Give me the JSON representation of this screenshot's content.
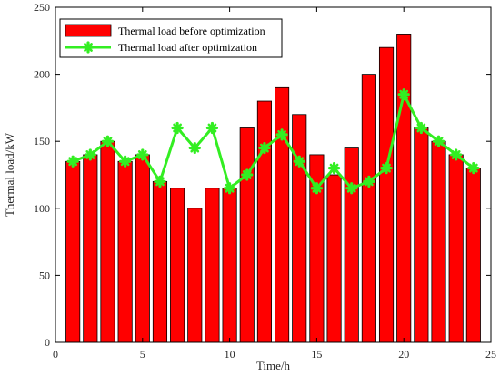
{
  "chart_data": {
    "type": "bar",
    "xlabel": "Time/h",
    "ylabel": "Thermal load/kW",
    "xlim": [
      0,
      25
    ],
    "ylim": [
      0,
      250
    ],
    "xticks": [
      0,
      5,
      10,
      15,
      20,
      25
    ],
    "yticks": [
      0,
      50,
      100,
      150,
      200,
      250
    ],
    "grid": false,
    "legend_position": "top-left",
    "categories": [
      1,
      2,
      3,
      4,
      5,
      6,
      7,
      8,
      9,
      10,
      11,
      12,
      13,
      14,
      15,
      16,
      17,
      18,
      19,
      20,
      21,
      22,
      23,
      24
    ],
    "series": [
      {
        "name": "Thermal load before optimization",
        "type": "bar",
        "color": "#ff0000",
        "values": [
          135,
          140,
          150,
          135,
          140,
          120,
          115,
          100,
          115,
          115,
          160,
          180,
          190,
          170,
          140,
          125,
          145,
          200,
          220,
          230,
          160,
          150,
          140,
          130
        ]
      },
      {
        "name": "Thermal load after optimization",
        "type": "line",
        "color": "#33ee22",
        "values": [
          135,
          140,
          150,
          135,
          140,
          120,
          160,
          145,
          160,
          115,
          125,
          145,
          155,
          135,
          115,
          130,
          115,
          120,
          130,
          185,
          160,
          150,
          140,
          130
        ]
      }
    ]
  }
}
